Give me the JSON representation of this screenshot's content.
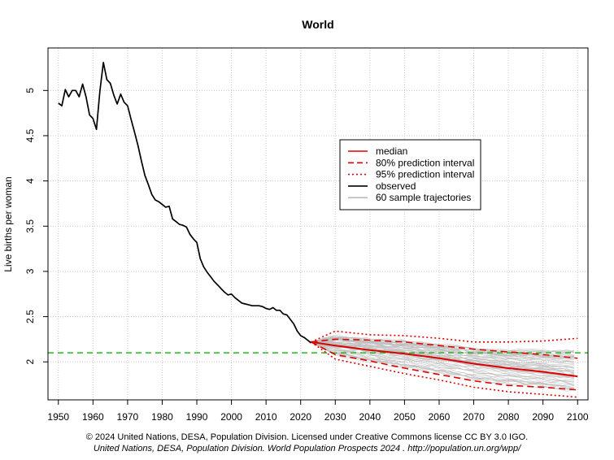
{
  "chart_data": {
    "type": "line",
    "title": "World",
    "xlabel": "",
    "ylabel": "Live births per woman",
    "xlim": [
      1947,
      2103
    ],
    "ylim": [
      1.58,
      5.47
    ],
    "xticks": [
      1950,
      1960,
      1970,
      1980,
      1990,
      2000,
      2010,
      2020,
      2030,
      2040,
      2050,
      2060,
      2070,
      2080,
      2090,
      2100
    ],
    "yticks": [
      2,
      2.5,
      3,
      3.5,
      4,
      4.5,
      5
    ],
    "ytick_labels": [
      "2",
      "2.5",
      "3",
      "3.5",
      "4",
      "4.5",
      "5"
    ],
    "grid": true,
    "legend_position": "center-right",
    "reference_line": {
      "y": 2.1,
      "color": "#22bb22"
    },
    "observed": {
      "name": "observed",
      "color": "#000000",
      "x": [
        1950,
        1951,
        1952,
        1953,
        1954,
        1955,
        1956,
        1957,
        1958,
        1959,
        1960,
        1961,
        1962,
        1963,
        1964,
        1965,
        1966,
        1967,
        1968,
        1969,
        1970,
        1971,
        1972,
        1973,
        1974,
        1975,
        1976,
        1977,
        1978,
        1979,
        1980,
        1981,
        1982,
        1983,
        1984,
        1985,
        1986,
        1987,
        1988,
        1989,
        1990,
        1991,
        1992,
        1993,
        1994,
        1995,
        1996,
        1997,
        1998,
        1999,
        2000,
        2001,
        2002,
        2003,
        2004,
        2005,
        2006,
        2007,
        2008,
        2009,
        2010,
        2011,
        2012,
        2013,
        2014,
        2015,
        2016,
        2017,
        2018,
        2019,
        2020,
        2021,
        2022,
        2023
      ],
      "y": [
        4.86,
        4.83,
        5.01,
        4.93,
        5.0,
        5.0,
        4.93,
        5.07,
        4.93,
        4.73,
        4.69,
        4.57,
        4.99,
        5.31,
        5.12,
        5.08,
        4.95,
        4.85,
        4.96,
        4.87,
        4.83,
        4.68,
        4.54,
        4.39,
        4.22,
        4.06,
        3.96,
        3.85,
        3.79,
        3.77,
        3.74,
        3.71,
        3.72,
        3.58,
        3.55,
        3.52,
        3.51,
        3.49,
        3.41,
        3.36,
        3.32,
        3.14,
        3.05,
        2.99,
        2.94,
        2.89,
        2.85,
        2.81,
        2.77,
        2.74,
        2.75,
        2.71,
        2.68,
        2.65,
        2.64,
        2.63,
        2.62,
        2.62,
        2.62,
        2.61,
        2.59,
        2.58,
        2.6,
        2.57,
        2.57,
        2.53,
        2.52,
        2.47,
        2.42,
        2.34,
        2.29,
        2.27,
        2.24,
        2.21
      ]
    },
    "projection_x": [
      2023,
      2030,
      2040,
      2050,
      2060,
      2070,
      2080,
      2090,
      2100
    ],
    "median": {
      "name": "median",
      "color": "#dd0000",
      "y": [
        2.22,
        2.18,
        2.13,
        2.09,
        2.04,
        1.98,
        1.93,
        1.89,
        1.84
      ]
    },
    "pi80": {
      "name": "80% prediction interval",
      "color": "#dd0000",
      "lower": [
        2.22,
        2.08,
        2.01,
        1.93,
        1.86,
        1.79,
        1.74,
        1.72,
        1.69
      ],
      "upper": [
        2.22,
        2.25,
        2.24,
        2.22,
        2.18,
        2.14,
        2.11,
        2.08,
        2.04
      ]
    },
    "pi95": {
      "name": "95% prediction interval",
      "color": "#dd0000",
      "lower": [
        2.22,
        2.03,
        1.95,
        1.87,
        1.8,
        1.72,
        1.67,
        1.64,
        1.61
      ],
      "upper": [
        2.22,
        2.34,
        2.3,
        2.29,
        2.26,
        2.22,
        2.22,
        2.23,
        2.26
      ]
    },
    "sample_trajectories": {
      "name": "60 sample trajectories",
      "count": 60,
      "color": "#bbbbbb"
    },
    "legend": [
      {
        "label": "median",
        "style": "solid",
        "color": "#dd0000"
      },
      {
        "label": "80% prediction interval",
        "style": "dashed",
        "color": "#dd0000"
      },
      {
        "label": "95% prediction interval",
        "style": "dotted",
        "color": "#dd0000"
      },
      {
        "label": "observed",
        "style": "solid",
        "color": "#000000"
      },
      {
        "label": "60 sample trajectories",
        "style": "solid",
        "color": "#bbbbbb"
      }
    ]
  },
  "footer": {
    "copyright": "© 2024 United Nations, DESA, Population Division. Licensed under Creative Commons license CC BY 3.0 IGO.",
    "citation": "United Nations, DESA, Population Division. World Population Prospects 2024 .  http://population.un.org/wpp/"
  }
}
